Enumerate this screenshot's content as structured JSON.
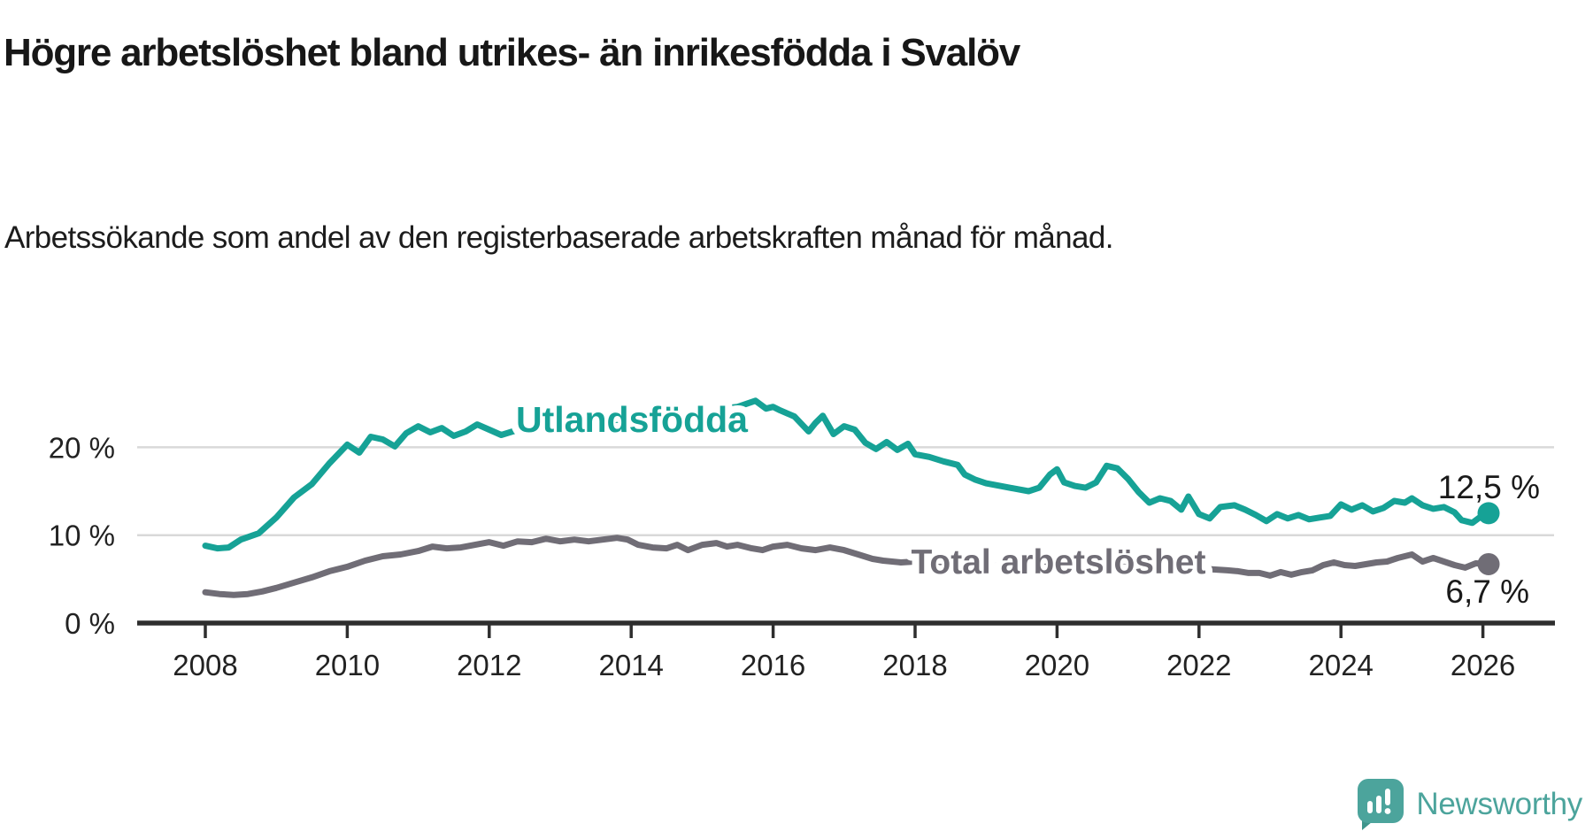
{
  "header": {
    "title": "Högre arbetslöshet bland utrikes- än inrikesfödda i Svalöv",
    "subtitle": "Arbetssökande som andel av den registerbaserade arbetskraften månad för månad."
  },
  "footer": {
    "brand": "Newsworthy"
  },
  "colors": {
    "foreign_born_line": "#16A296",
    "total_line": "#706D76",
    "axis": "#2E2E2E",
    "gridline": "#D9D9D9",
    "text": "#171717",
    "logo_teal": "#4CA49C",
    "logo_tail": "#3E958C"
  },
  "chart_data": {
    "type": "line",
    "title": "Högre arbetslöshet bland utrikes- än inrikesfödda i Svalöv",
    "subtitle": "Arbetssökande som andel av den registerbaserade arbetskraften månad för månad.",
    "xlabel": "",
    "ylabel": "",
    "x_ticks": [
      2008,
      2010,
      2012,
      2014,
      2016,
      2018,
      2020,
      2022,
      2024,
      2026
    ],
    "y_ticks": [
      {
        "value": 0,
        "label": "0 %"
      },
      {
        "value": 10,
        "label": "10 %"
      },
      {
        "value": 20,
        "label": "20 %"
      }
    ],
    "x_range": [
      2008,
      2026.95
    ],
    "y_range": [
      0,
      27
    ],
    "grid": "horizontal",
    "legend_position": "inline-labels",
    "series": [
      {
        "name": "Utlandsfödda",
        "end_label": "12,5 %",
        "end_value": 12.5,
        "points": [
          [
            2008.0,
            8.8
          ],
          [
            2008.17,
            8.5
          ],
          [
            2008.33,
            8.6
          ],
          [
            2008.5,
            9.5
          ],
          [
            2008.75,
            10.2
          ],
          [
            2009.0,
            12.0
          ],
          [
            2009.25,
            14.3
          ],
          [
            2009.5,
            15.8
          ],
          [
            2009.75,
            18.2
          ],
          [
            2010.0,
            20.3
          ],
          [
            2010.17,
            19.4
          ],
          [
            2010.33,
            21.2
          ],
          [
            2010.5,
            20.9
          ],
          [
            2010.67,
            20.1
          ],
          [
            2010.83,
            21.6
          ],
          [
            2011.0,
            22.4
          ],
          [
            2011.17,
            21.7
          ],
          [
            2011.33,
            22.2
          ],
          [
            2011.5,
            21.3
          ],
          [
            2011.67,
            21.8
          ],
          [
            2011.83,
            22.6
          ],
          [
            2012.0,
            22.0
          ],
          [
            2012.17,
            21.4
          ],
          [
            2012.33,
            21.8
          ],
          [
            2012.5,
            22.2
          ],
          [
            2012.75,
            22.6
          ],
          [
            2013.0,
            22.9
          ],
          [
            2013.25,
            22.6
          ],
          [
            2013.5,
            23.1
          ],
          [
            2013.75,
            23.0
          ],
          [
            2014.0,
            23.3
          ],
          [
            2014.25,
            23.0
          ],
          [
            2014.5,
            23.6
          ],
          [
            2014.75,
            23.8
          ],
          [
            2015.0,
            24.1
          ],
          [
            2015.25,
            24.4
          ],
          [
            2015.5,
            24.6
          ],
          [
            2015.75,
            25.3
          ],
          [
            2015.9,
            24.4
          ],
          [
            2016.0,
            24.6
          ],
          [
            2016.1,
            24.2
          ],
          [
            2016.3,
            23.5
          ],
          [
            2016.5,
            21.8
          ],
          [
            2016.6,
            22.8
          ],
          [
            2016.7,
            23.6
          ],
          [
            2016.85,
            21.5
          ],
          [
            2017.0,
            22.4
          ],
          [
            2017.15,
            22.0
          ],
          [
            2017.3,
            20.5
          ],
          [
            2017.45,
            19.8
          ],
          [
            2017.6,
            20.6
          ],
          [
            2017.75,
            19.7
          ],
          [
            2017.9,
            20.4
          ],
          [
            2018.0,
            19.2
          ],
          [
            2018.2,
            18.9
          ],
          [
            2018.4,
            18.4
          ],
          [
            2018.6,
            18.0
          ],
          [
            2018.7,
            16.9
          ],
          [
            2018.85,
            16.3
          ],
          [
            2019.0,
            15.9
          ],
          [
            2019.2,
            15.6
          ],
          [
            2019.4,
            15.3
          ],
          [
            2019.6,
            15.0
          ],
          [
            2019.75,
            15.4
          ],
          [
            2019.9,
            16.9
          ],
          [
            2020.0,
            17.5
          ],
          [
            2020.1,
            16.0
          ],
          [
            2020.25,
            15.6
          ],
          [
            2020.4,
            15.4
          ],
          [
            2020.55,
            16.0
          ],
          [
            2020.7,
            17.9
          ],
          [
            2020.85,
            17.6
          ],
          [
            2021.0,
            16.4
          ],
          [
            2021.15,
            14.9
          ],
          [
            2021.3,
            13.7
          ],
          [
            2021.45,
            14.2
          ],
          [
            2021.6,
            13.9
          ],
          [
            2021.75,
            12.9
          ],
          [
            2021.85,
            14.4
          ],
          [
            2022.0,
            12.4
          ],
          [
            2022.15,
            11.9
          ],
          [
            2022.3,
            13.2
          ],
          [
            2022.5,
            13.4
          ],
          [
            2022.65,
            12.9
          ],
          [
            2022.8,
            12.3
          ],
          [
            2022.95,
            11.6
          ],
          [
            2023.1,
            12.4
          ],
          [
            2023.25,
            11.9
          ],
          [
            2023.4,
            12.3
          ],
          [
            2023.55,
            11.8
          ],
          [
            2023.7,
            12.0
          ],
          [
            2023.85,
            12.2
          ],
          [
            2024.0,
            13.5
          ],
          [
            2024.15,
            12.9
          ],
          [
            2024.3,
            13.4
          ],
          [
            2024.45,
            12.7
          ],
          [
            2024.6,
            13.1
          ],
          [
            2024.75,
            13.9
          ],
          [
            2024.9,
            13.7
          ],
          [
            2025.0,
            14.2
          ],
          [
            2025.15,
            13.4
          ],
          [
            2025.3,
            13.0
          ],
          [
            2025.45,
            13.2
          ],
          [
            2025.6,
            12.6
          ],
          [
            2025.7,
            11.7
          ],
          [
            2025.85,
            11.4
          ],
          [
            2026.0,
            12.3
          ],
          [
            2026.08,
            12.5
          ]
        ]
      },
      {
        "name": "Total arbetslöshet",
        "end_label": "6,7 %",
        "end_value": 6.7,
        "points": [
          [
            2008.0,
            3.5
          ],
          [
            2008.2,
            3.3
          ],
          [
            2008.4,
            3.2
          ],
          [
            2008.6,
            3.3
          ],
          [
            2008.8,
            3.6
          ],
          [
            2009.0,
            4.0
          ],
          [
            2009.25,
            4.6
          ],
          [
            2009.5,
            5.2
          ],
          [
            2009.75,
            5.9
          ],
          [
            2010.0,
            6.4
          ],
          [
            2010.25,
            7.1
          ],
          [
            2010.5,
            7.6
          ],
          [
            2010.75,
            7.8
          ],
          [
            2011.0,
            8.2
          ],
          [
            2011.2,
            8.7
          ],
          [
            2011.4,
            8.5
          ],
          [
            2011.6,
            8.6
          ],
          [
            2011.8,
            8.9
          ],
          [
            2012.0,
            9.2
          ],
          [
            2012.2,
            8.8
          ],
          [
            2012.4,
            9.3
          ],
          [
            2012.6,
            9.2
          ],
          [
            2012.8,
            9.6
          ],
          [
            2013.0,
            9.3
          ],
          [
            2013.2,
            9.5
          ],
          [
            2013.4,
            9.3
          ],
          [
            2013.6,
            9.5
          ],
          [
            2013.8,
            9.7
          ],
          [
            2013.95,
            9.5
          ],
          [
            2014.1,
            8.9
          ],
          [
            2014.3,
            8.6
          ],
          [
            2014.5,
            8.5
          ],
          [
            2014.65,
            8.9
          ],
          [
            2014.8,
            8.3
          ],
          [
            2015.0,
            8.9
          ],
          [
            2015.2,
            9.1
          ],
          [
            2015.35,
            8.7
          ],
          [
            2015.5,
            8.9
          ],
          [
            2015.7,
            8.5
          ],
          [
            2015.85,
            8.3
          ],
          [
            2016.0,
            8.7
          ],
          [
            2016.2,
            8.9
          ],
          [
            2016.4,
            8.5
          ],
          [
            2016.6,
            8.3
          ],
          [
            2016.8,
            8.6
          ],
          [
            2017.0,
            8.3
          ],
          [
            2017.2,
            7.8
          ],
          [
            2017.4,
            7.3
          ],
          [
            2017.55,
            7.1
          ],
          [
            2017.8,
            6.9
          ],
          [
            2018.0,
            7.0
          ],
          [
            2018.5,
            6.8
          ],
          [
            2019.0,
            6.6
          ],
          [
            2019.5,
            6.4
          ],
          [
            2020.0,
            6.8
          ],
          [
            2020.3,
            7.6
          ],
          [
            2020.7,
            7.3
          ],
          [
            2021.0,
            7.0
          ],
          [
            2021.5,
            6.6
          ],
          [
            2022.0,
            6.2
          ],
          [
            2022.4,
            6.0
          ],
          [
            2022.55,
            5.9
          ],
          [
            2022.7,
            5.7
          ],
          [
            2022.85,
            5.7
          ],
          [
            2023.0,
            5.4
          ],
          [
            2023.15,
            5.8
          ],
          [
            2023.3,
            5.5
          ],
          [
            2023.45,
            5.8
          ],
          [
            2023.6,
            6.0
          ],
          [
            2023.75,
            6.6
          ],
          [
            2023.9,
            6.9
          ],
          [
            2024.05,
            6.6
          ],
          [
            2024.2,
            6.5
          ],
          [
            2024.35,
            6.7
          ],
          [
            2024.5,
            6.9
          ],
          [
            2024.65,
            7.0
          ],
          [
            2024.8,
            7.4
          ],
          [
            2025.0,
            7.8
          ],
          [
            2025.15,
            7.0
          ],
          [
            2025.3,
            7.4
          ],
          [
            2025.45,
            7.0
          ],
          [
            2025.6,
            6.6
          ],
          [
            2025.75,
            6.3
          ],
          [
            2025.9,
            6.8
          ],
          [
            2026.08,
            6.7
          ]
        ]
      }
    ]
  }
}
